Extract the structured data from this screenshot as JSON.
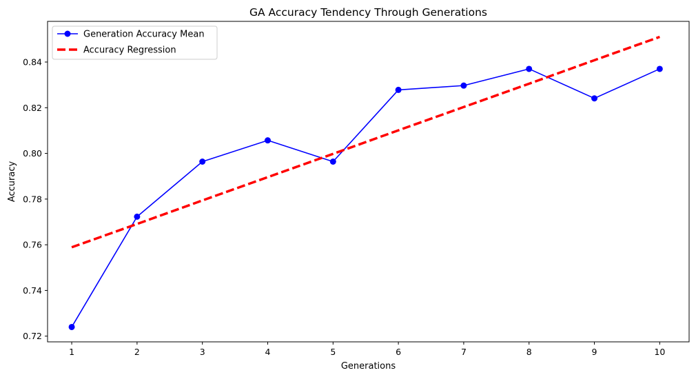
{
  "chart_data": {
    "type": "line",
    "title": "GA Accuracy Tendency Through Generations",
    "xlabel": "Generations",
    "ylabel": "Accuracy",
    "x": [
      1,
      2,
      3,
      4,
      5,
      6,
      7,
      8,
      9,
      10
    ],
    "xlim": [
      0.63,
      10.45
    ],
    "ylim": [
      0.7175,
      0.8578
    ],
    "xticks": [
      1,
      2,
      3,
      4,
      5,
      6,
      7,
      8,
      9,
      10
    ],
    "yticks": [
      0.72,
      0.74,
      0.76,
      0.78,
      0.8,
      0.82,
      0.84
    ],
    "grid": false,
    "legend_position": "top-left",
    "series": [
      {
        "name": "Generation Accuracy Mean",
        "values": [
          0.724,
          0.7723,
          0.7964,
          0.8057,
          0.7964,
          0.8278,
          0.8297,
          0.837,
          0.8241,
          0.837
        ],
        "color": "#0000ff",
        "style": "solid",
        "marker": "circle"
      },
      {
        "name": "Accuracy Regression",
        "values": [
          0.7589,
          0.7691,
          0.7794,
          0.7896,
          0.7998,
          0.8101,
          0.8203,
          0.8305,
          0.8408,
          0.851
        ],
        "color": "#ff0000",
        "style": "dashed",
        "marker": "none"
      }
    ]
  }
}
